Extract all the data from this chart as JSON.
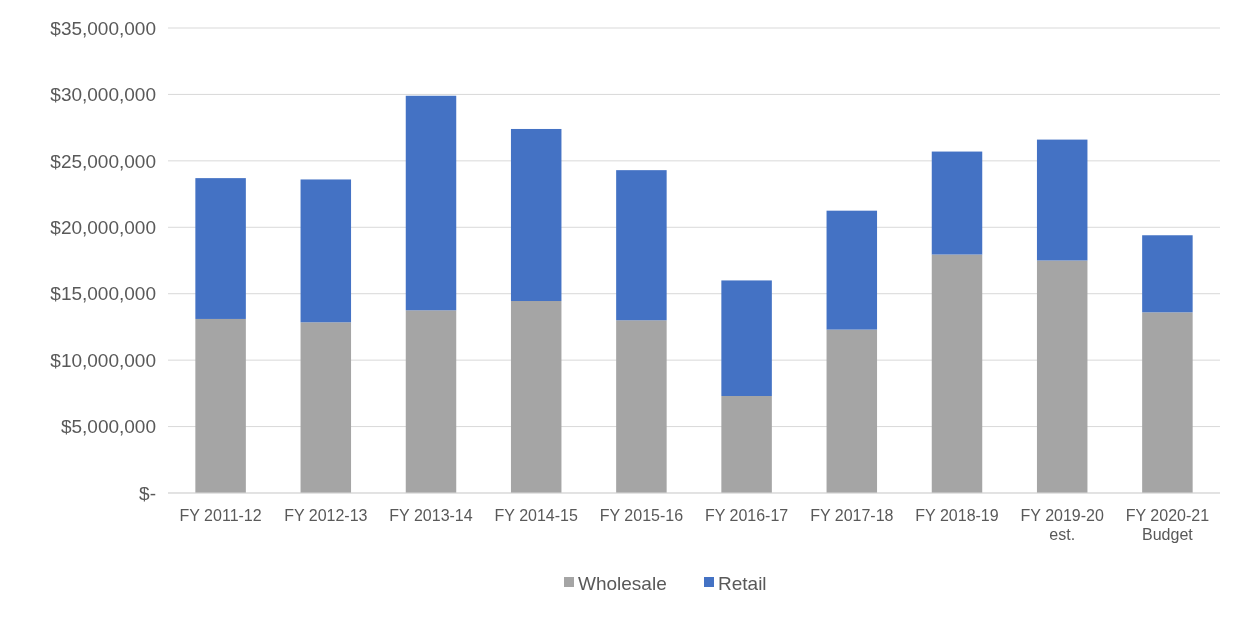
{
  "chart_data": {
    "type": "bar",
    "stacked": true,
    "categories": [
      "FY 2011-12",
      "FY 2012-13",
      "FY 2013-14",
      "FY 2014-15",
      "FY 2015-16",
      "FY 2016-17",
      "FY 2017-18",
      "FY 2018-19",
      "FY 2019-20\nest.",
      "FY 2020-21\nBudget"
    ],
    "series": [
      {
        "name": "Wholesale",
        "color": "#a5a5a5",
        "values": [
          13100000,
          12850000,
          13750000,
          14450000,
          13000000,
          7300000,
          12300000,
          17950000,
          17500000,
          13600000
        ]
      },
      {
        "name": "Retail",
        "color": "#4472c4",
        "values": [
          10600000,
          10750000,
          16150000,
          12950000,
          11300000,
          8700000,
          8950000,
          7750000,
          9100000,
          5800000
        ]
      }
    ],
    "ylim": [
      0,
      35000000
    ],
    "yticks": [
      {
        "value": 0,
        "label": "$-"
      },
      {
        "value": 5000000,
        "label": "$5,000,000"
      },
      {
        "value": 10000000,
        "label": "$10,000,000"
      },
      {
        "value": 15000000,
        "label": "$15,000,000"
      },
      {
        "value": 20000000,
        "label": "$20,000,000"
      },
      {
        "value": 25000000,
        "label": "$25,000,000"
      },
      {
        "value": 30000000,
        "label": "$30,000,000"
      },
      {
        "value": 35000000,
        "label": "$35,000,000"
      }
    ],
    "grid": "y",
    "legend": "bottom"
  }
}
